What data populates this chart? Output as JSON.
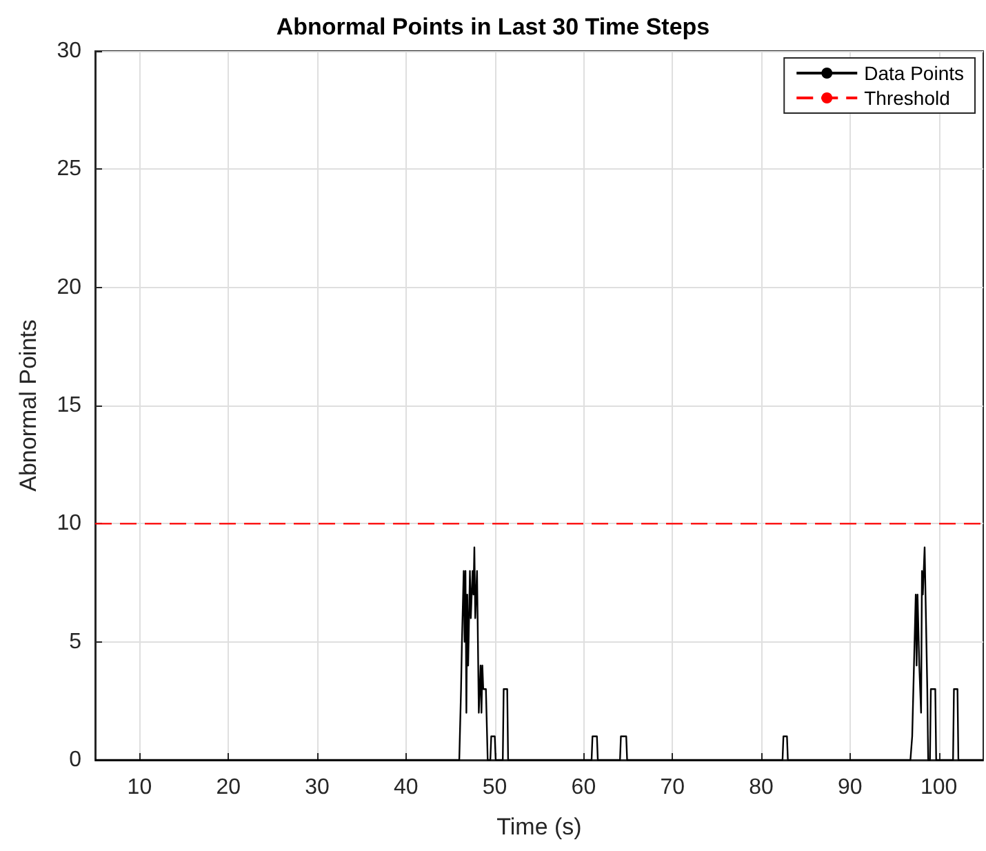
{
  "chart_data": {
    "type": "line",
    "title": "Abnormal Points in Last 30 Time Steps",
    "xlabel": "Time (s)",
    "ylabel": "Abnormal Points",
    "series": [
      {
        "name": "Data Points",
        "color": "#000000",
        "x": [
          5,
          46.0,
          46.2,
          46.3,
          46.5,
          46.6,
          46.7,
          46.8,
          46.9,
          47.0,
          47.2,
          47.3,
          47.5,
          47.6,
          47.7,
          47.8,
          48.0,
          48.2,
          48.4,
          48.5,
          48.6,
          48.7,
          49.0,
          49.2,
          49.5,
          49.6,
          50.0,
          50.1,
          50.9,
          51.0,
          51.4,
          51.5,
          60.9,
          61.0,
          61.5,
          61.6,
          64.1,
          64.2,
          64.8,
          64.9,
          82.4,
          82.5,
          82.9,
          83.0,
          96.8,
          97.0,
          97.2,
          97.4,
          97.5,
          97.6,
          97.8,
          98.0,
          98.1,
          98.2,
          98.3,
          98.4,
          98.5,
          98.7,
          98.8,
          99.0,
          99.1,
          99.6,
          99.7,
          101.6,
          101.7,
          102.1,
          102.2,
          105
        ],
        "values": [
          0,
          0,
          3,
          5,
          8,
          5,
          8,
          2,
          7,
          4,
          8,
          6,
          8,
          7,
          9,
          6,
          8,
          2,
          4,
          2,
          4,
          3,
          3,
          0,
          0,
          1,
          1,
          0,
          0,
          3,
          3,
          0,
          0,
          1,
          1,
          0,
          0,
          1,
          1,
          0,
          0,
          1,
          1,
          0,
          0,
          1,
          4,
          7,
          4,
          7,
          4,
          2,
          8,
          7,
          8,
          9,
          7,
          3,
          0,
          0,
          3,
          3,
          0,
          0,
          3,
          3,
          0,
          0
        ]
      }
    ],
    "ref_lines": [
      {
        "axis": "y",
        "value": 10,
        "label": "Threshold",
        "color": "#ff0000",
        "line_style": "dashed"
      }
    ],
    "xlim": [
      5,
      105
    ],
    "xticks": [
      10,
      20,
      30,
      40,
      50,
      60,
      70,
      80,
      90,
      100
    ],
    "ylim": [
      0,
      30
    ],
    "yticks": [
      0,
      5,
      10,
      15,
      20,
      25,
      30
    ],
    "grid": true,
    "legend": "top right",
    "marker": "none",
    "line_style": "solid"
  }
}
